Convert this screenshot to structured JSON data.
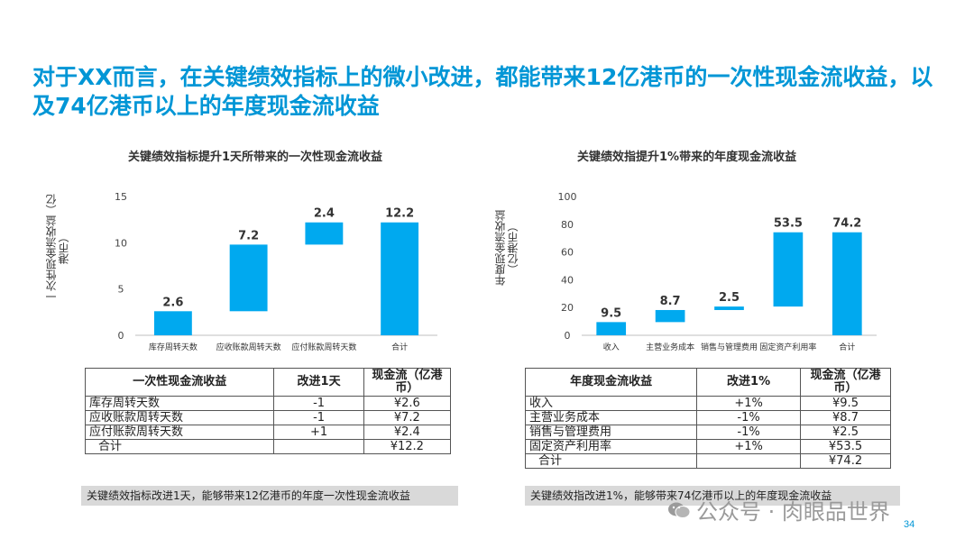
{
  "slide": {
    "title": "对于XX而言，在关键绩效指标上的微小改进，都能带来12亿港币的一次性现金流收益，以及74亿港币以上的年度现金流收益",
    "page_number": "34",
    "watermark": "公众号 · 肉眼品世界",
    "accent_color": "#0096d6",
    "bar_color": "#00a9ef"
  },
  "left": {
    "chart_title": "关键绩效指标提升1天所带来的一次性现金流收益",
    "ylabel": "一次性现金流收益（亿港币）",
    "note": "关键绩效指标改进1天，能够带来12亿港币的年度一次性现金流收益",
    "table": {
      "headers": [
        "一次性现金流收益",
        "改进1天",
        "现金流（亿港币）"
      ],
      "rows": [
        [
          "库存周转天数",
          "-1",
          "¥2.6"
        ],
        [
          "应收账款周转天数",
          "-1",
          "¥7.2"
        ],
        [
          "应付账款周转天数",
          "+1",
          "¥2.4"
        ],
        [
          "合计",
          "",
          "¥12.2"
        ]
      ]
    }
  },
  "right": {
    "chart_title": "关键绩效指提升1%带来的年度现金流收益",
    "ylabel": "年度现金流收益（亿港币）",
    "note": "关键绩效指改进1%，能够带来74亿港币以上的年度现金流收益",
    "table": {
      "headers": [
        "年度现金流收益",
        "改进1%",
        "现金流（亿港币）"
      ],
      "rows": [
        [
          "收入",
          "+1%",
          "¥9.5"
        ],
        [
          "主营业务成本",
          "-1%",
          "¥8.7"
        ],
        [
          "销售与管理费用",
          "-1%",
          "¥2.5"
        ],
        [
          "固定资产利用率",
          "+1%",
          "¥53.5"
        ],
        [
          "合计",
          "",
          "¥74.2"
        ]
      ]
    }
  },
  "chart_data": [
    {
      "type": "bar",
      "subtype": "waterfall",
      "title": "关键绩效指标提升1天所带来的一次性现金流收益",
      "ylabel": "一次性现金流收益（亿港币）",
      "categories": [
        "库存周转天数",
        "应收账款周转天数",
        "应付账款周转天数",
        "合计"
      ],
      "values": [
        2.6,
        7.2,
        2.4,
        12.2
      ],
      "data_labels": [
        "2.6",
        "7.2",
        "2.4",
        "12.2"
      ],
      "is_total": [
        false,
        false,
        false,
        true
      ],
      "ylim": [
        0,
        15
      ],
      "yticks": [
        0,
        5,
        10,
        15
      ],
      "grid": false
    },
    {
      "type": "bar",
      "subtype": "waterfall",
      "title": "关键绩效指提升1%带来的年度现金流收益",
      "ylabel": "年度现金流收益（亿港币）",
      "categories": [
        "收入",
        "主营业务成本",
        "销售与管理费用",
        "固定资产利用率",
        "合计"
      ],
      "values": [
        9.5,
        8.7,
        2.5,
        53.5,
        74.2
      ],
      "data_labels": [
        "9.5",
        "8.7",
        "2.5",
        "53.5",
        "74.2"
      ],
      "is_total": [
        false,
        false,
        false,
        false,
        true
      ],
      "ylim": [
        0,
        100
      ],
      "yticks": [
        0,
        20,
        40,
        60,
        80,
        100
      ],
      "grid": false
    }
  ]
}
